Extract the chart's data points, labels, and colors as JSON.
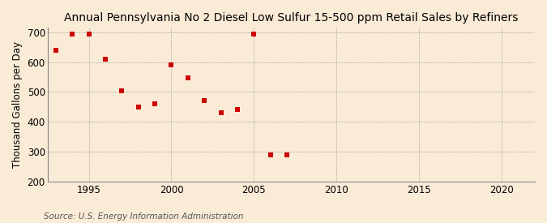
{
  "title": "Annual Pennsylvania No 2 Diesel Low Sulfur 15-500 ppm Retail Sales by Refiners",
  "ylabel": "Thousand Gallons per Day",
  "source": "Source: U.S. Energy Information Administration",
  "background_color": "#faebd7",
  "x_data": [
    1993,
    1994,
    1995,
    1996,
    1997,
    1998,
    1999,
    2000,
    2001,
    2002,
    2003,
    2004,
    2005,
    2006,
    2007
  ],
  "y_data": [
    640,
    695,
    695,
    610,
    505,
    450,
    460,
    590,
    548,
    470,
    430,
    440,
    695,
    290,
    288
  ],
  "marker_color": "#cc0000",
  "marker_size": 18,
  "xlim": [
    1992.5,
    2022
  ],
  "ylim": [
    200,
    715
  ],
  "xticks": [
    1995,
    2000,
    2005,
    2010,
    2015,
    2020
  ],
  "yticks": [
    200,
    300,
    400,
    500,
    600,
    700
  ],
  "grid_color": "#aaaaaa",
  "title_fontsize": 10,
  "label_fontsize": 8.5,
  "tick_fontsize": 8.5,
  "source_fontsize": 7.5
}
